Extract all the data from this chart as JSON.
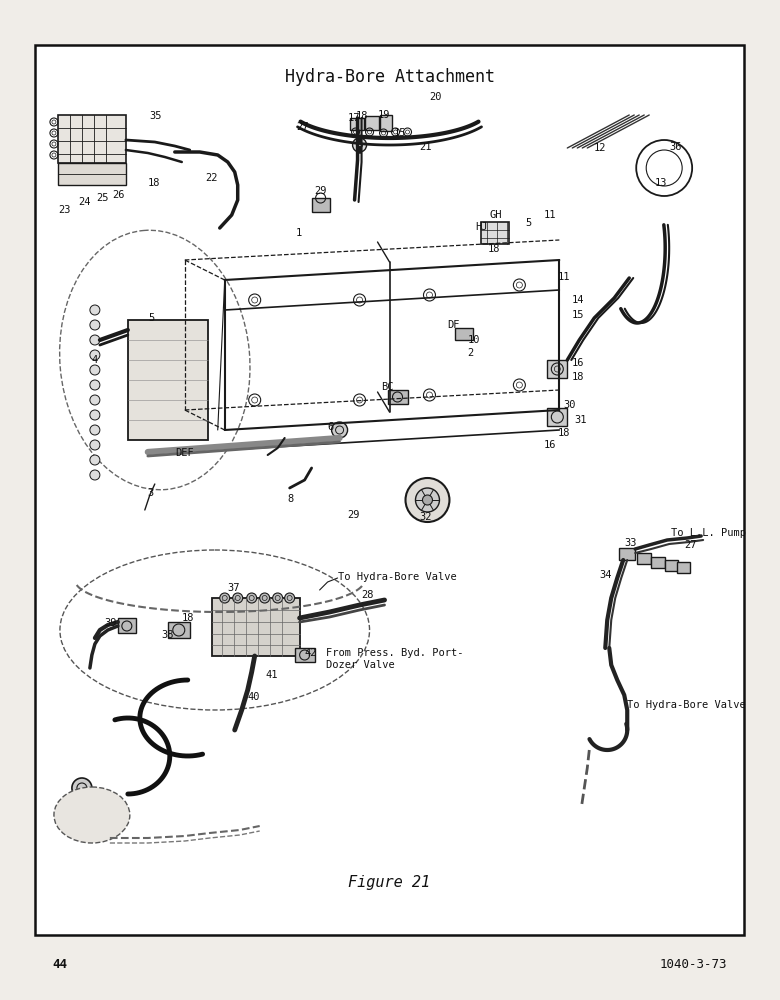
{
  "title": "Hydra-Bore Attachment",
  "figure_label": "Figure 21",
  "page_number": "44",
  "doc_number": "1040-3-73",
  "bg_color": "#f0ede8",
  "border_color": "#111111",
  "text_color": "#111111",
  "ink_color": "#1a1a1a",
  "font_family": "monospace",
  "title_fontsize": 12,
  "label_fontsize": 7.5,
  "fig_label_fontsize": 11,
  "page_num_fontsize": 9
}
